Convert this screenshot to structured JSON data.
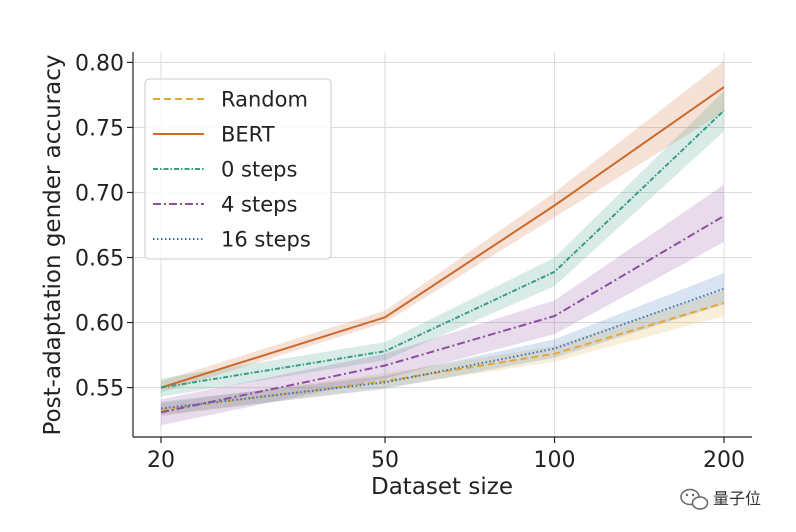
{
  "chart_data": {
    "type": "line",
    "title": "",
    "xlabel": "Dataset size",
    "ylabel": "Post-adaptation gender accuracy",
    "x_scale": "log",
    "x": [
      20,
      50,
      100,
      200
    ],
    "x_tick_labels": [
      "20",
      "50",
      "100",
      "200"
    ],
    "y_ticks": [
      0.55,
      0.6,
      0.65,
      0.7,
      0.75,
      0.8
    ],
    "y_tick_labels": [
      "0.55",
      "0.60",
      "0.65",
      "0.70",
      "0.75",
      "0.80"
    ],
    "ylim": [
      0.512,
      0.808
    ],
    "grid": true,
    "legend_position": "top-left",
    "series": [
      {
        "name": "Random",
        "color": "#e2a83a",
        "dash": "dashed",
        "values": [
          0.533,
          0.555,
          0.576,
          0.615
        ],
        "lower": [
          0.528,
          0.55,
          0.57,
          0.605
        ],
        "upper": [
          0.538,
          0.561,
          0.582,
          0.625
        ]
      },
      {
        "name": "BERT",
        "color": "#cc6a2c",
        "dash": "solid",
        "values": [
          0.55,
          0.604,
          0.69,
          0.781
        ],
        "lower": [
          0.546,
          0.6,
          0.681,
          0.762
        ],
        "upper": [
          0.555,
          0.609,
          0.7,
          0.801
        ]
      },
      {
        "name": "0 steps",
        "color": "#3a9c82",
        "dash": "dashdot-dense",
        "values": [
          0.55,
          0.578,
          0.639,
          0.763
        ],
        "lower": [
          0.543,
          0.571,
          0.628,
          0.747
        ],
        "upper": [
          0.557,
          0.585,
          0.65,
          0.778
        ]
      },
      {
        "name": "4 steps",
        "color": "#8e4e9e",
        "dash": "dashdot",
        "values": [
          0.531,
          0.567,
          0.605,
          0.682
        ],
        "lower": [
          0.521,
          0.557,
          0.591,
          0.662
        ],
        "upper": [
          0.541,
          0.576,
          0.617,
          0.706
        ]
      },
      {
        "name": "16 steps",
        "color": "#3b76b8",
        "dash": "dotted",
        "values": [
          0.534,
          0.554,
          0.58,
          0.626
        ],
        "lower": [
          0.529,
          0.549,
          0.573,
          0.614
        ],
        "upper": [
          0.539,
          0.559,
          0.587,
          0.638
        ]
      }
    ]
  },
  "watermark": {
    "text": "量子位",
    "icon": "wechat-icon"
  }
}
